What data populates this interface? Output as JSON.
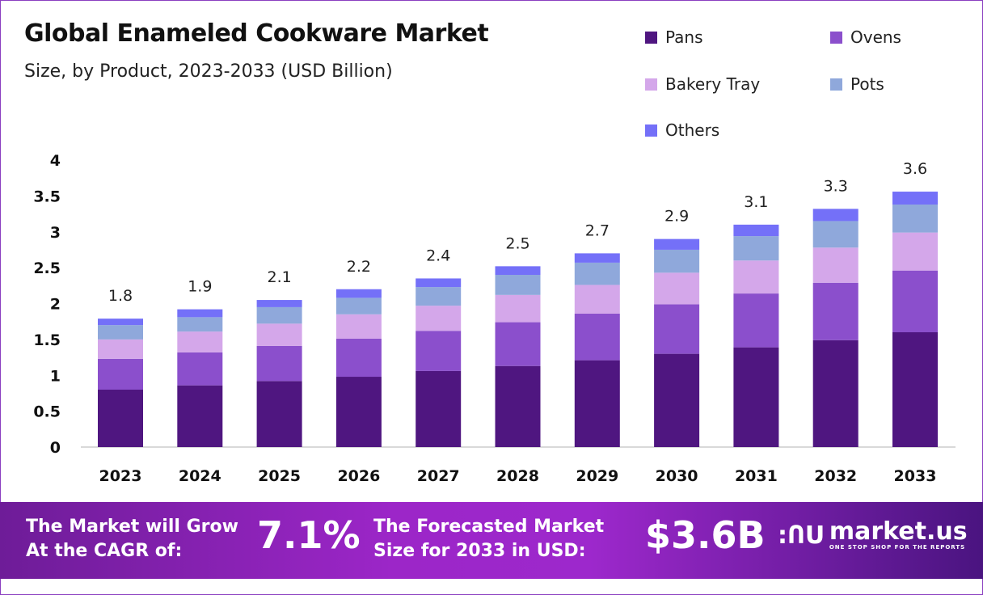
{
  "header": {
    "title": "Global Enameled Cookware Market",
    "subtitle": "Size, by Product, 2023-2033 (USD Billion)"
  },
  "colors": {
    "Pans": "#4f1680",
    "Ovens": "#8b4fcc",
    "Bakery Tray": "#d4a7ea",
    "Pots": "#8fa8db",
    "Others": "#7470f8"
  },
  "chart_data": {
    "type": "bar",
    "stacked": true,
    "title": "Global Enameled Cookware Market",
    "subtitle": "Size, by Product, 2023-2033 (USD Billion)",
    "categories": [
      "2023",
      "2024",
      "2025",
      "2026",
      "2027",
      "2028",
      "2029",
      "2030",
      "2031",
      "2032",
      "2033"
    ],
    "series": [
      {
        "name": "Pans",
        "values": [
          0.8,
          0.86,
          0.92,
          0.98,
          1.06,
          1.13,
          1.21,
          1.3,
          1.39,
          1.49,
          1.6
        ]
      },
      {
        "name": "Ovens",
        "values": [
          0.43,
          0.46,
          0.49,
          0.53,
          0.56,
          0.61,
          0.65,
          0.69,
          0.75,
          0.8,
          0.86
        ]
      },
      {
        "name": "Bakery Tray",
        "values": [
          0.27,
          0.29,
          0.31,
          0.34,
          0.35,
          0.38,
          0.4,
          0.44,
          0.46,
          0.49,
          0.53
        ]
      },
      {
        "name": "Pots",
        "values": [
          0.2,
          0.2,
          0.23,
          0.23,
          0.26,
          0.28,
          0.31,
          0.32,
          0.34,
          0.37,
          0.39
        ]
      },
      {
        "name": "Others",
        "values": [
          0.09,
          0.11,
          0.1,
          0.12,
          0.12,
          0.12,
          0.13,
          0.15,
          0.16,
          0.17,
          0.18
        ]
      }
    ],
    "totals": [
      "1.8",
      "1.9",
      "2.1",
      "2.2",
      "2.4",
      "2.5",
      "2.7",
      "2.9",
      "3.1",
      "3.3",
      "3.6"
    ],
    "yticks": [
      "0",
      "0.5",
      "1",
      "1.5",
      "2",
      "2.5",
      "3",
      "3.5",
      "4"
    ],
    "ylim": [
      0,
      4
    ],
    "xlabel": "",
    "ylabel": "",
    "grid": false,
    "legend_position": "top-right"
  },
  "footer": {
    "cagr_label_line1": "The Market will Grow",
    "cagr_label_line2": "At the CAGR of:",
    "cagr_value": "7.1%",
    "forecast_label_line1": "The Forecasted Market",
    "forecast_label_line2": "Size for 2033 in USD:",
    "forecast_value": "$3.6B",
    "logo_name": "market.us",
    "logo_tagline": "ONE STOP SHOP FOR THE REPORTS"
  }
}
